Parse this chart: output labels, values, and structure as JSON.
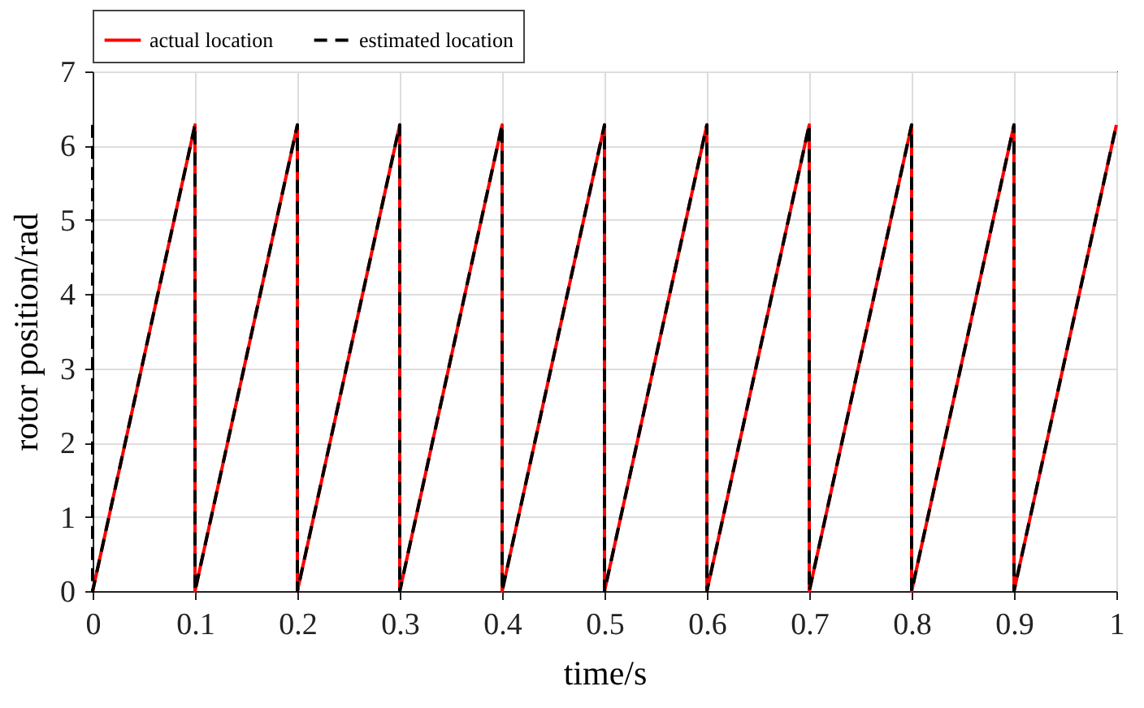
{
  "chart_data": {
    "type": "line",
    "xlabel": "time/s",
    "ylabel": "rotor position/rad",
    "xlim": [
      0,
      1
    ],
    "xticks": [
      0,
      0.1,
      0.2,
      0.3,
      0.4,
      0.5,
      0.6,
      0.7,
      0.8,
      0.9,
      1
    ],
    "ylim": [
      0,
      7
    ],
    "yticks": [
      0,
      1,
      2,
      3,
      4,
      5,
      6,
      7
    ],
    "grid": true,
    "legend": "top",
    "marker": "none",
    "series": [
      {
        "name": "actual location",
        "color": "#ff0000",
        "line_style": "solid",
        "x": [
          0,
          0.1,
          0.1,
          0.2,
          0.2,
          0.3,
          0.3,
          0.4,
          0.4,
          0.5,
          0.5,
          0.6,
          0.6,
          0.7,
          0.7,
          0.8,
          0.8,
          0.9,
          0.9,
          1
        ],
        "values": [
          0,
          6.28,
          0,
          6.28,
          0,
          6.28,
          0,
          6.28,
          0,
          6.28,
          0,
          6.28,
          0,
          6.28,
          0,
          6.28,
          0,
          6.28,
          0,
          6.28
        ]
      },
      {
        "name": "estimated location",
        "color": "#000000",
        "line_style": "dashed",
        "x": [
          0,
          0,
          0.1,
          0.1,
          0.2,
          0.2,
          0.3,
          0.3,
          0.4,
          0.4,
          0.5,
          0.5,
          0.6,
          0.6,
          0.7,
          0.7,
          0.8,
          0.8,
          0.9,
          0.9,
          1
        ],
        "values": [
          6.28,
          0,
          6.28,
          0,
          6.28,
          0,
          6.28,
          0,
          6.28,
          0,
          6.28,
          0,
          6.28,
          0,
          6.28,
          0,
          6.28,
          0,
          6.28,
          0,
          6.28
        ]
      }
    ]
  }
}
